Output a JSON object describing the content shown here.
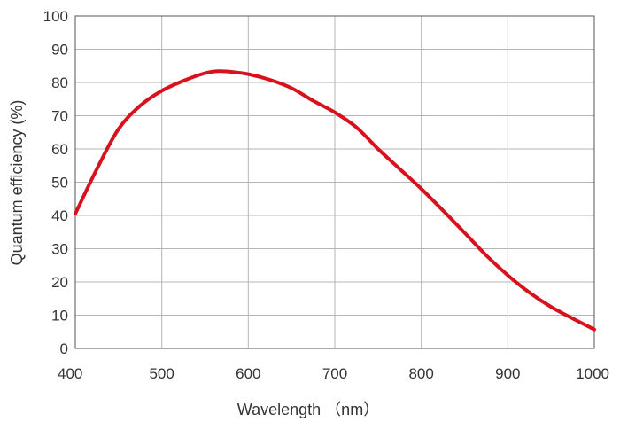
{
  "chart_data": {
    "type": "line",
    "title": "",
    "xlabel": "Wavelength （nm）",
    "ylabel": "Quantum efficiency (%)",
    "xlim": [
      400,
      1000
    ],
    "ylim": [
      0,
      100
    ],
    "xticks": [
      400,
      500,
      600,
      700,
      800,
      900,
      1000
    ],
    "yticks": [
      0,
      10,
      20,
      30,
      40,
      50,
      60,
      70,
      80,
      90,
      100
    ],
    "grid": true,
    "series": [
      {
        "color": "#d7121d",
        "x": [
          400,
          425,
          450,
          475,
          500,
          525,
          550,
          565,
          580,
          600,
          625,
          650,
          675,
          700,
          725,
          750,
          775,
          800,
          825,
          850,
          875,
          900,
          925,
          950,
          975,
          1000
        ],
        "y": [
          40.5,
          54,
          66,
          73,
          77.5,
          80.5,
          82.8,
          83.4,
          83.2,
          82.5,
          80.8,
          78.3,
          74.5,
          71,
          66.5,
          60,
          54,
          48,
          41.5,
          34.8,
          28,
          22,
          16.8,
          12.5,
          9,
          5.7
        ]
      }
    ]
  }
}
